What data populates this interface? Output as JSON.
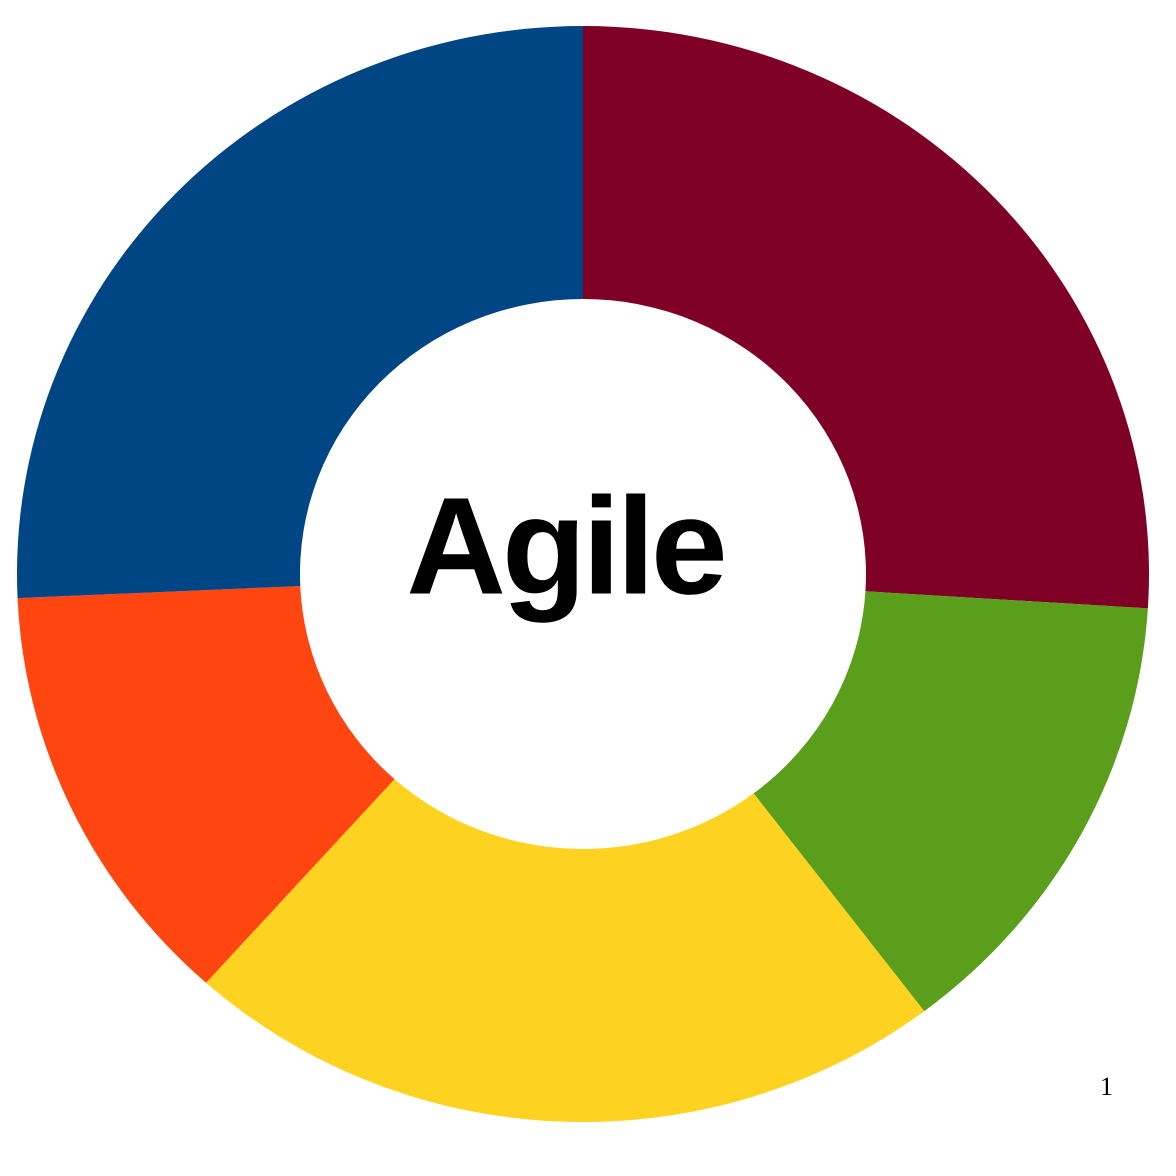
{
  "chart_data": {
    "type": "pie",
    "title": "",
    "center_label": "Agile",
    "segments": [
      {
        "value": 26.0,
        "color": "#7f0027"
      },
      {
        "value": 13.7,
        "color": "#5a9e1b"
      },
      {
        "value": 21.9,
        "color": "#fdd220"
      },
      {
        "value": 12.7,
        "color": "#ff4510"
      },
      {
        "value": 25.7,
        "color": "#004685"
      }
    ],
    "legend": "none"
  },
  "footer": {
    "page_number": "1"
  }
}
